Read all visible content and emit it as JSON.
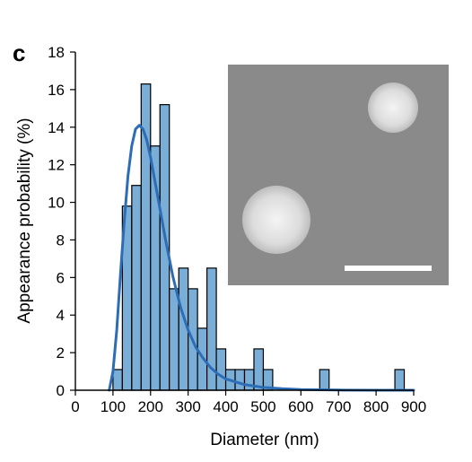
{
  "panel_label": "c",
  "chart_data": {
    "type": "bar",
    "xlabel": "Diameter (nm)",
    "ylabel": "Appearance probability (%)",
    "xlim": [
      0,
      900
    ],
    "ylim": [
      0,
      18
    ],
    "xticks": [
      0,
      100,
      200,
      300,
      400,
      500,
      600,
      700,
      800,
      900
    ],
    "yticks": [
      0,
      2,
      4,
      6,
      8,
      10,
      12,
      14,
      16,
      18
    ],
    "bin_width": 25,
    "bins": [
      {
        "x0": 100,
        "value": 1.1
      },
      {
        "x0": 125,
        "value": 9.8
      },
      {
        "x0": 150,
        "value": 10.9
      },
      {
        "x0": 175,
        "value": 16.3
      },
      {
        "x0": 200,
        "value": 13.0
      },
      {
        "x0": 225,
        "value": 15.2
      },
      {
        "x0": 250,
        "value": 5.4
      },
      {
        "x0": 275,
        "value": 6.5
      },
      {
        "x0": 300,
        "value": 5.4
      },
      {
        "x0": 325,
        "value": 3.3
      },
      {
        "x0": 350,
        "value": 6.5
      },
      {
        "x0": 375,
        "value": 2.2
      },
      {
        "x0": 400,
        "value": 1.1
      },
      {
        "x0": 425,
        "value": 1.1
      },
      {
        "x0": 450,
        "value": 1.1
      },
      {
        "x0": 475,
        "value": 2.2
      },
      {
        "x0": 500,
        "value": 1.1
      },
      {
        "x0": 650,
        "value": 1.1
      },
      {
        "x0": 850,
        "value": 1.1
      }
    ],
    "fit_curve": {
      "type": "lognormal",
      "peak_x": 170,
      "peak_y": 14.1,
      "points": [
        [
          90,
          0
        ],
        [
          100,
          1.0
        ],
        [
          110,
          3.2
        ],
        [
          120,
          6.2
        ],
        [
          130,
          9.0
        ],
        [
          140,
          11.4
        ],
        [
          150,
          13.0
        ],
        [
          160,
          13.9
        ],
        [
          170,
          14.1
        ],
        [
          180,
          13.9
        ],
        [
          190,
          13.3
        ],
        [
          200,
          12.4
        ],
        [
          220,
          10.2
        ],
        [
          240,
          8.0
        ],
        [
          260,
          6.0
        ],
        [
          280,
          4.4
        ],
        [
          300,
          3.2
        ],
        [
          320,
          2.3
        ],
        [
          340,
          1.7
        ],
        [
          360,
          1.2
        ],
        [
          380,
          0.85
        ],
        [
          400,
          0.6
        ],
        [
          450,
          0.3
        ],
        [
          500,
          0.15
        ],
        [
          550,
          0.08
        ],
        [
          600,
          0.04
        ],
        [
          700,
          0.01
        ],
        [
          800,
          0
        ],
        [
          900,
          0
        ]
      ]
    },
    "bar_color": "#7aaed6",
    "bar_edge": "#000000",
    "curve_color": "#2d6db5",
    "grid": false,
    "legend": "none"
  },
  "inset": {
    "type": "micrograph",
    "background": "#8a8a8a",
    "particle_color": "#e6e6e6",
    "scale_bar_color": "#ffffff"
  }
}
